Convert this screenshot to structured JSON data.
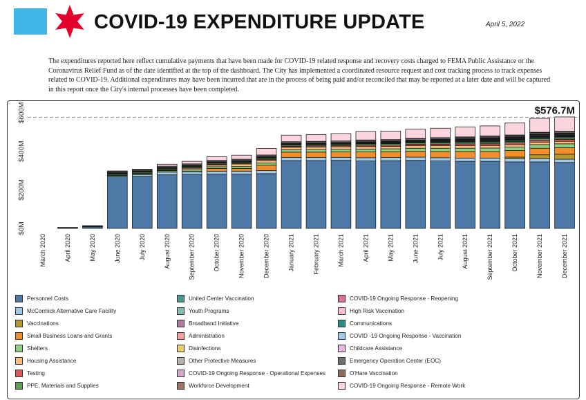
{
  "header": {
    "title": "COVID-19 EXPENDITURE UPDATE",
    "date": "April 5, 2022",
    "description": "The expenditures reported here reflect cumulative payments that have been made for COVID-19 related response and recovery costs charged to FEMA Public Assistance or the Coronavirus Relief Fund as of the date identified at the top of the dashboard. The City has implemented a coordinated resource request and cost tracking process to track expenses related to COVID-19. Additional expenditures may have been incurred that are in the process of being paid and/or reconciled that may be reported at a later date and will be captured in this report once the City's internal processes have been completed."
  },
  "colors": {
    "flag": "#41b6e6",
    "star": "#e4002b"
  },
  "chart_data": {
    "type": "bar",
    "stacked": true,
    "title": "",
    "xlabel": "",
    "ylabel": "",
    "ylim": [
      0,
      640
    ],
    "yticks": [
      0,
      200,
      400,
      600
    ],
    "ytick_labels": [
      "$0M",
      "$200M",
      "$400M",
      "$600M"
    ],
    "reference_line": 576.7,
    "annotation": "$576.7M",
    "categories": [
      "March 2020",
      "April 2020",
      "May 2020",
      "June 2020",
      "July 2020",
      "August 2020",
      "September 2020",
      "October 2020",
      "November 2020",
      "December 2020",
      "January 2021",
      "February 2021",
      "March 2021",
      "April 2021",
      "May 2021",
      "June 2021",
      "July 2021",
      "August 2021",
      "September 2021",
      "October 2021",
      "November 2021",
      "December 2021"
    ],
    "totals": [
      0,
      5,
      14,
      298,
      307,
      333,
      348,
      372,
      380,
      415,
      483,
      487,
      492,
      503,
      505,
      514,
      521,
      527,
      534,
      546,
      570,
      576.7
    ],
    "legend_columns": 3,
    "series": [
      {
        "name": "Personnel Costs",
        "color": "#4e79a7",
        "values": [
          0,
          3,
          8,
          270,
          270,
          278,
          280,
          282,
          282,
          284,
          352,
          352,
          353,
          350,
          351,
          353,
          350,
          348,
          348,
          345,
          345,
          342
        ]
      },
      {
        "name": "McCormick Alternative Care Facility",
        "color": "#a0cbe8",
        "values": [
          0,
          0,
          0,
          0,
          8,
          14,
          15,
          15,
          15,
          16,
          16,
          16,
          16,
          17,
          17,
          17,
          17,
          17,
          17,
          17,
          17,
          17
        ]
      },
      {
        "name": "Vaccinations",
        "color": "#b6992d",
        "values": [
          0,
          0,
          0,
          0,
          0,
          0,
          0,
          0,
          0,
          0,
          0,
          0,
          0,
          0,
          0,
          0,
          0,
          0,
          0,
          8,
          20,
          26
        ]
      },
      {
        "name": "Small Business Loans and Grants",
        "color": "#f28e2b",
        "values": [
          0,
          0,
          0,
          0,
          0,
          0,
          1,
          14,
          14,
          28,
          28,
          28,
          28,
          30,
          30,
          30,
          32,
          34,
          34,
          34,
          34,
          34
        ]
      },
      {
        "name": "Shelters",
        "color": "#8cd17d",
        "values": [
          0,
          0,
          0,
          5,
          6,
          7,
          8,
          9,
          10,
          11,
          12,
          13,
          14,
          15,
          15,
          16,
          17,
          17,
          18,
          18,
          19,
          20
        ]
      },
      {
        "name": "Housing Assistance",
        "color": "#ffbe7d",
        "values": [
          0,
          0,
          0,
          0,
          0,
          2,
          8,
          9,
          13,
          13,
          13,
          13,
          13,
          13,
          13,
          13,
          13,
          13,
          13,
          13,
          13,
          13
        ]
      },
      {
        "name": "Testing",
        "color": "#e15759",
        "values": [
          0,
          0,
          0,
          2,
          2,
          3,
          3,
          4,
          4,
          5,
          5,
          6,
          6,
          7,
          7,
          8,
          8,
          9,
          9,
          9,
          10,
          10
        ]
      },
      {
        "name": "PPE, Materials and Supplies",
        "color": "#59a14f",
        "values": [
          0,
          1,
          2,
          6,
          6,
          6,
          6,
          6,
          6,
          7,
          7,
          7,
          7,
          7,
          7,
          7,
          7,
          7,
          7,
          7,
          7,
          7
        ]
      },
      {
        "name": "United Center Vaccination",
        "color": "#499894",
        "values": [
          0,
          0,
          0,
          0,
          0,
          0,
          0,
          0,
          0,
          0,
          0,
          0,
          0,
          2,
          3,
          4,
          5,
          5,
          5,
          5,
          5,
          5
        ]
      },
      {
        "name": "Youth Programs",
        "color": "#86bcb6",
        "values": [
          0,
          0,
          0,
          0,
          0,
          0,
          0,
          0,
          0,
          0,
          0,
          0,
          0,
          0,
          0,
          0,
          1,
          2,
          3,
          3,
          3,
          3
        ]
      },
      {
        "name": "Broadband Initiative",
        "color": "#b07aa1",
        "values": [
          0,
          0,
          0,
          0,
          0,
          0,
          0,
          0,
          1,
          1,
          1,
          1,
          1,
          1,
          1,
          1,
          1,
          1,
          1,
          1,
          1,
          1
        ]
      },
      {
        "name": "Administration",
        "color": "#ff9d9a",
        "values": [
          0,
          0,
          0,
          1,
          1,
          1,
          1,
          1,
          1,
          2,
          2,
          2,
          2,
          2,
          2,
          2,
          2,
          2,
          2,
          2,
          2,
          2
        ]
      },
      {
        "name": "Disinfections",
        "color": "#f1ce63",
        "values": [
          0,
          0,
          0,
          2,
          2,
          2,
          2,
          2,
          2,
          2,
          2,
          2,
          2,
          2,
          2,
          2,
          2,
          2,
          2,
          2,
          2,
          2
        ]
      },
      {
        "name": "Other Protective Measures",
        "color": "#bab0ac",
        "values": [
          0,
          0,
          1,
          3,
          3,
          3,
          3,
          3,
          3,
          3,
          3,
          3,
          3,
          3,
          3,
          3,
          3,
          3,
          3,
          3,
          3,
          3
        ]
      },
      {
        "name": "COVID-19 Ongoing Response - Operational Expenses",
        "color": "#d4a6c8",
        "values": [
          0,
          0,
          0,
          0,
          0,
          0,
          0,
          0,
          0,
          0,
          0,
          0,
          0,
          0,
          0,
          1,
          2,
          3,
          4,
          4,
          4,
          4
        ]
      },
      {
        "name": "Workforce Development",
        "color": "#9d7660",
        "values": [
          0,
          0,
          0,
          0,
          0,
          0,
          0,
          0,
          0,
          0,
          0,
          0,
          0,
          0,
          0,
          0,
          0,
          1,
          1,
          1,
          1,
          1
        ]
      },
      {
        "name": "COVID-19 Ongoing Response - Reopening",
        "color": "#d37295",
        "values": [
          0,
          0,
          0,
          0,
          0,
          0,
          0,
          0,
          0,
          0,
          0,
          0,
          0,
          0,
          0,
          0,
          1,
          1,
          1,
          1,
          1,
          1
        ]
      },
      {
        "name": "High Risk Vaccination",
        "color": "#fabfd2",
        "values": [
          0,
          0,
          0,
          0,
          0,
          0,
          0,
          0,
          0,
          0,
          0,
          0,
          0,
          0,
          0,
          0,
          0,
          0,
          1,
          1,
          1,
          1
        ]
      },
      {
        "name": "Communications",
        "color": "#2e8b87",
        "values": [
          0,
          0,
          0,
          1,
          1,
          1,
          1,
          1,
          1,
          1,
          1,
          1,
          1,
          1,
          1,
          1,
          1,
          1,
          1,
          1,
          1,
          1
        ]
      },
      {
        "name": "COVID -19 Ongoing Response - Vaccination",
        "color": "#a5c8e8",
        "values": [
          0,
          0,
          0,
          0,
          0,
          0,
          0,
          0,
          0,
          0,
          0,
          0,
          0,
          0,
          0,
          0,
          0,
          0,
          1,
          1,
          1,
          1
        ]
      },
      {
        "name": "Childcare Assistance",
        "color": "#e5b8dc",
        "values": [
          0,
          0,
          0,
          0,
          0,
          0,
          0,
          0,
          0,
          0,
          0,
          0,
          0,
          0,
          0,
          0,
          0,
          0,
          0,
          0,
          0,
          1
        ]
      },
      {
        "name": "Emergency Operation Center (EOC)",
        "color": "#6f6f6f",
        "values": [
          0,
          1,
          2,
          6,
          6,
          6,
          7,
          7,
          7,
          8,
          8,
          8,
          8,
          8,
          8,
          8,
          8,
          8,
          8,
          8,
          8,
          8
        ]
      },
      {
        "name": "O'Hare Vaccination",
        "color": "#8c6d5a",
        "values": [
          0,
          0,
          0,
          0,
          0,
          0,
          0,
          0,
          0,
          0,
          0,
          0,
          0,
          1,
          1,
          1,
          1,
          1,
          1,
          1,
          1,
          1
        ]
      },
      {
        "name": "COVID-19 Ongoing Response - Remote Work",
        "color": "#fcd5de",
        "values": [
          0,
          0,
          1,
          2,
          2,
          10,
          13,
          19,
          21,
          34,
          34,
          35,
          38,
          44,
          44,
          48,
          49,
          51,
          52,
          62,
          72,
          74.7
        ]
      }
    ]
  }
}
